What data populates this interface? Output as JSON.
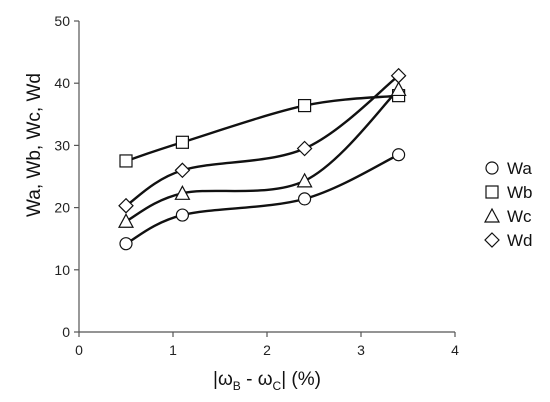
{
  "chart_data": {
    "type": "line",
    "title": "",
    "xlabel": {
      "prefix": "|ω",
      "sub1": "B",
      "mid": " - ω",
      "sub2": "C",
      "suffix": "| (%)"
    },
    "ylabel": "Wa, Wb, Wc, Wd",
    "xlim": [
      0,
      4
    ],
    "ylim": [
      0,
      50
    ],
    "xticks": [
      "0",
      "1",
      "2",
      "3",
      "4"
    ],
    "yticks": [
      "0",
      "10",
      "20",
      "30",
      "40",
      "50"
    ],
    "grid": false,
    "legend_position": "right",
    "smooth": true,
    "series": [
      {
        "name": "Wa",
        "marker": "circle",
        "x": [
          0.5,
          1.1,
          2.4,
          3.4
        ],
        "y": [
          14.2,
          18.8,
          21.4,
          28.5
        ]
      },
      {
        "name": "Wb",
        "marker": "square",
        "x": [
          0.5,
          1.1,
          2.4,
          3.4
        ],
        "y": [
          27.5,
          30.5,
          36.4,
          38.0
        ]
      },
      {
        "name": "Wc",
        "marker": "triangle",
        "x": [
          0.5,
          1.1,
          2.4,
          3.4
        ],
        "y": [
          17.8,
          22.3,
          24.3,
          39.0
        ]
      },
      {
        "name": "Wd",
        "marker": "diamond",
        "x": [
          0.5,
          1.1,
          2.4,
          3.4
        ],
        "y": [
          20.3,
          26.0,
          29.5,
          41.2
        ]
      }
    ]
  }
}
